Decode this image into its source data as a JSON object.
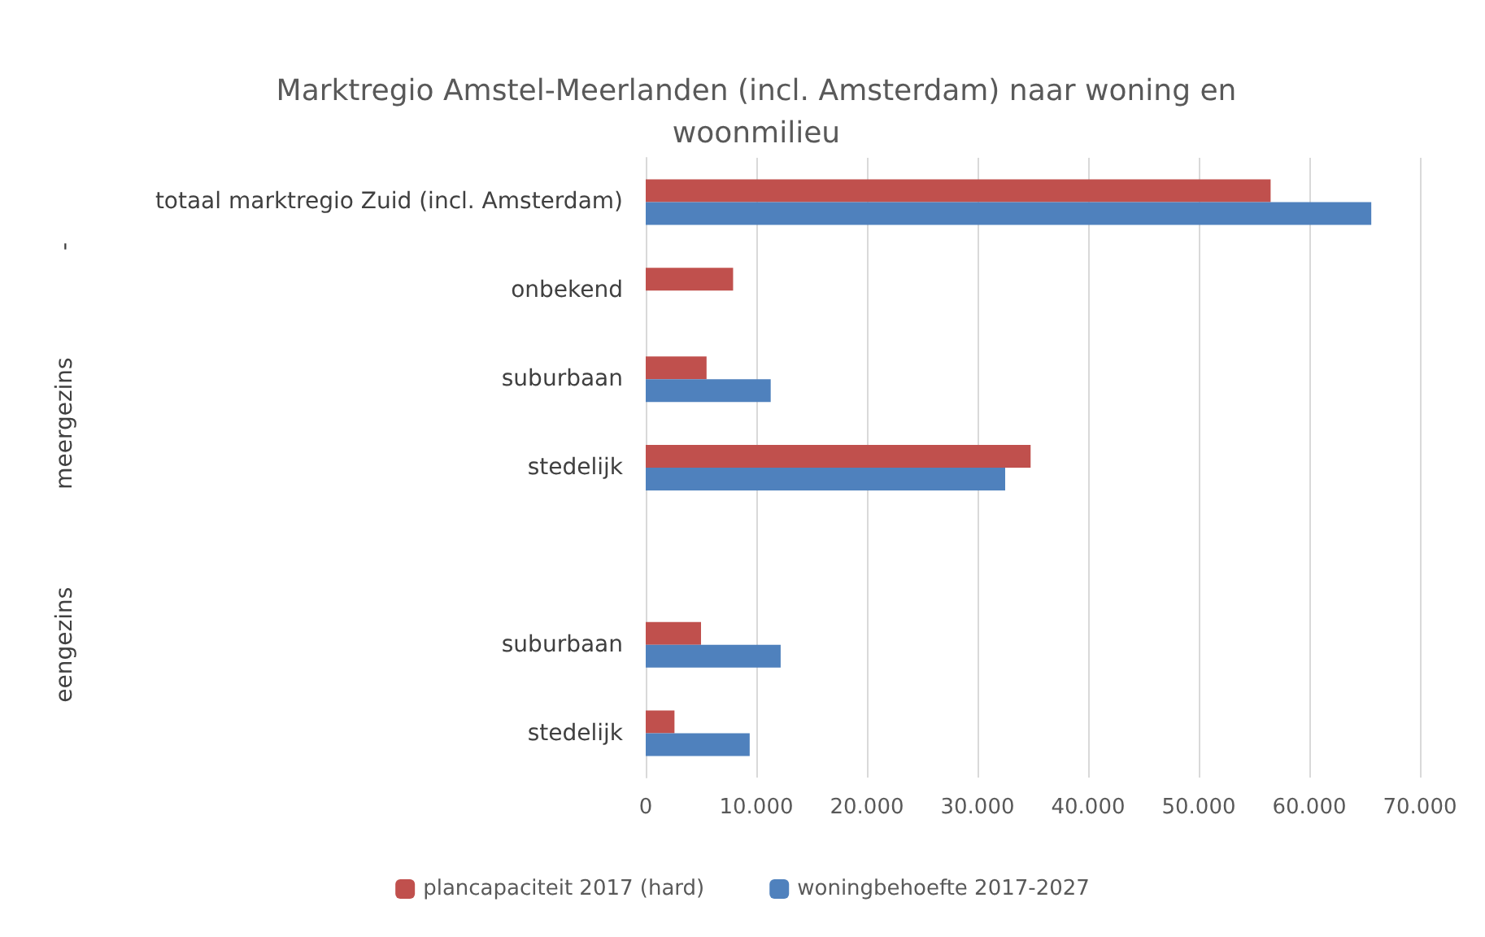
{
  "chart_data": {
    "type": "bar",
    "orientation": "horizontal",
    "title": "Marktregio Amstel-Meerlanden (incl. Amsterdam) naar woning en\nwoonmilieu",
    "categories": [
      "totaal marktregio Zuid (incl. Amsterdam)",
      "onbekend",
      "suburbaan",
      "stedelijk",
      null,
      "suburbaan",
      "stedelijk"
    ],
    "series": [
      {
        "name": "plancapaciteit 2017 (hard)",
        "color": "#c0504d",
        "values": [
          56500,
          7900,
          5500,
          34800,
          null,
          5000,
          2600
        ]
      },
      {
        "name": "woningbehoefte 2017-2027",
        "color": "#4f81bd",
        "values": [
          65600,
          null,
          11300,
          32500,
          null,
          12200,
          9400
        ]
      }
    ],
    "annotations": [
      "-",
      "meergezins",
      "eengezins"
    ],
    "xlim": [
      0,
      70000
    ],
    "xticks": [
      {
        "value": 0,
        "label": "0"
      },
      {
        "value": 10000,
        "label": "10.000"
      },
      {
        "value": 20000,
        "label": "20.000"
      },
      {
        "value": 30000,
        "label": "30.000"
      },
      {
        "value": 40000,
        "label": "40.000"
      },
      {
        "value": 50000,
        "label": "50.000"
      },
      {
        "value": 60000,
        "label": "60.000"
      },
      {
        "value": 70000,
        "label": "70.000"
      }
    ],
    "grid": "x",
    "legend": "bottom"
  }
}
